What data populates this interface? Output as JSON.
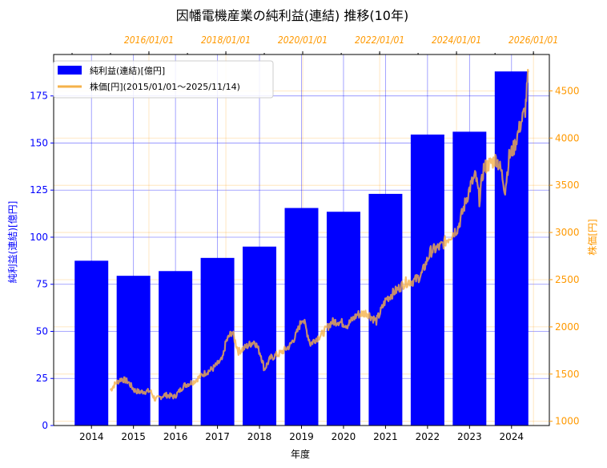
{
  "chart_data": {
    "type": "bar+line",
    "title": "因幡電機産業の純利益(連結) 推移(10年)",
    "xlabel": "年度",
    "ylabel_left": "純利益(連結)[億円]",
    "ylabel_right": "株価[円]",
    "categories": [
      "2014",
      "2015",
      "2016",
      "2017",
      "2018",
      "2019",
      "2020",
      "2021",
      "2022",
      "2023",
      "2024"
    ],
    "bar_series": {
      "name": "純利益(連結)[億円]",
      "color": "#0000ff",
      "values": [
        87.5,
        79.5,
        82,
        89,
        95,
        115.5,
        113.5,
        123,
        154.5,
        156,
        188
      ]
    },
    "line_series": {
      "name": "株価[円](2015/01/01～2025/11/14)",
      "color": "#f5b24a",
      "points": [
        [
          "2015-01-01",
          1330
        ],
        [
          "2015-02-15",
          1400
        ],
        [
          "2015-04-15",
          1450
        ],
        [
          "2015-06-15",
          1420
        ],
        [
          "2015-08-15",
          1330
        ],
        [
          "2015-10-01",
          1310
        ],
        [
          "2016-01-15",
          1320
        ],
        [
          "2016-03-01",
          1230
        ],
        [
          "2016-06-01",
          1280
        ],
        [
          "2016-09-01",
          1260
        ],
        [
          "2016-12-01",
          1380
        ],
        [
          "2017-03-01",
          1420
        ],
        [
          "2017-06-01",
          1500
        ],
        [
          "2017-09-01",
          1560
        ],
        [
          "2017-12-01",
          1660
        ],
        [
          "2018-01-01",
          1840
        ],
        [
          "2018-03-01",
          1950
        ],
        [
          "2018-05-01",
          1740
        ],
        [
          "2018-07-01",
          1780
        ],
        [
          "2018-10-01",
          1850
        ],
        [
          "2018-12-01",
          1700
        ],
        [
          "2019-01-01",
          1550
        ],
        [
          "2019-03-01",
          1670
        ],
        [
          "2019-06-01",
          1720
        ],
        [
          "2019-09-01",
          1800
        ],
        [
          "2019-11-01",
          1920
        ],
        [
          "2020-01-01",
          2100
        ],
        [
          "2020-03-15",
          1820
        ],
        [
          "2020-05-01",
          1870
        ],
        [
          "2020-07-01",
          1920
        ],
        [
          "2020-10-01",
          2050
        ],
        [
          "2020-12-01",
          2060
        ],
        [
          "2021-03-01",
          2020
        ],
        [
          "2021-06-01",
          2130
        ],
        [
          "2021-09-01",
          2150
        ],
        [
          "2021-12-01",
          2060
        ],
        [
          "2022-03-01",
          2290
        ],
        [
          "2022-06-01",
          2380
        ],
        [
          "2022-09-01",
          2470
        ],
        [
          "2022-12-01",
          2490
        ],
        [
          "2023-02-01",
          2550
        ],
        [
          "2023-05-01",
          2800
        ],
        [
          "2023-08-01",
          2850
        ],
        [
          "2023-11-01",
          2960
        ],
        [
          "2024-01-15",
          3050
        ],
        [
          "2024-03-15",
          3280
        ],
        [
          "2024-05-15",
          3500
        ],
        [
          "2024-07-01",
          3600
        ],
        [
          "2024-08-05",
          3350
        ],
        [
          "2024-09-15",
          3680
        ],
        [
          "2024-11-01",
          3720
        ],
        [
          "2025-01-15",
          3780
        ],
        [
          "2025-03-01",
          3650
        ],
        [
          "2025-04-07",
          3450
        ],
        [
          "2025-05-15",
          3800
        ],
        [
          "2025-07-01",
          3900
        ],
        [
          "2025-09-01",
          4150
        ],
        [
          "2025-10-15",
          4300
        ],
        [
          "2025-11-14",
          4700
        ]
      ]
    },
    "ylim_left": [
      0,
      197
    ],
    "ylim_right": [
      955,
      4885
    ],
    "yticks_left": [
      0,
      25,
      50,
      75,
      100,
      125,
      150,
      175
    ],
    "yticks_right": [
      1000,
      1500,
      2000,
      2500,
      3000,
      3500,
      4000,
      4500
    ],
    "top_date_ticks": [
      "2016/01/01",
      "2018/01/01",
      "2020/01/01",
      "2022/01/01",
      "2024/01/01",
      "2026/01/01"
    ],
    "grid": true,
    "legend_position": "top-left"
  }
}
